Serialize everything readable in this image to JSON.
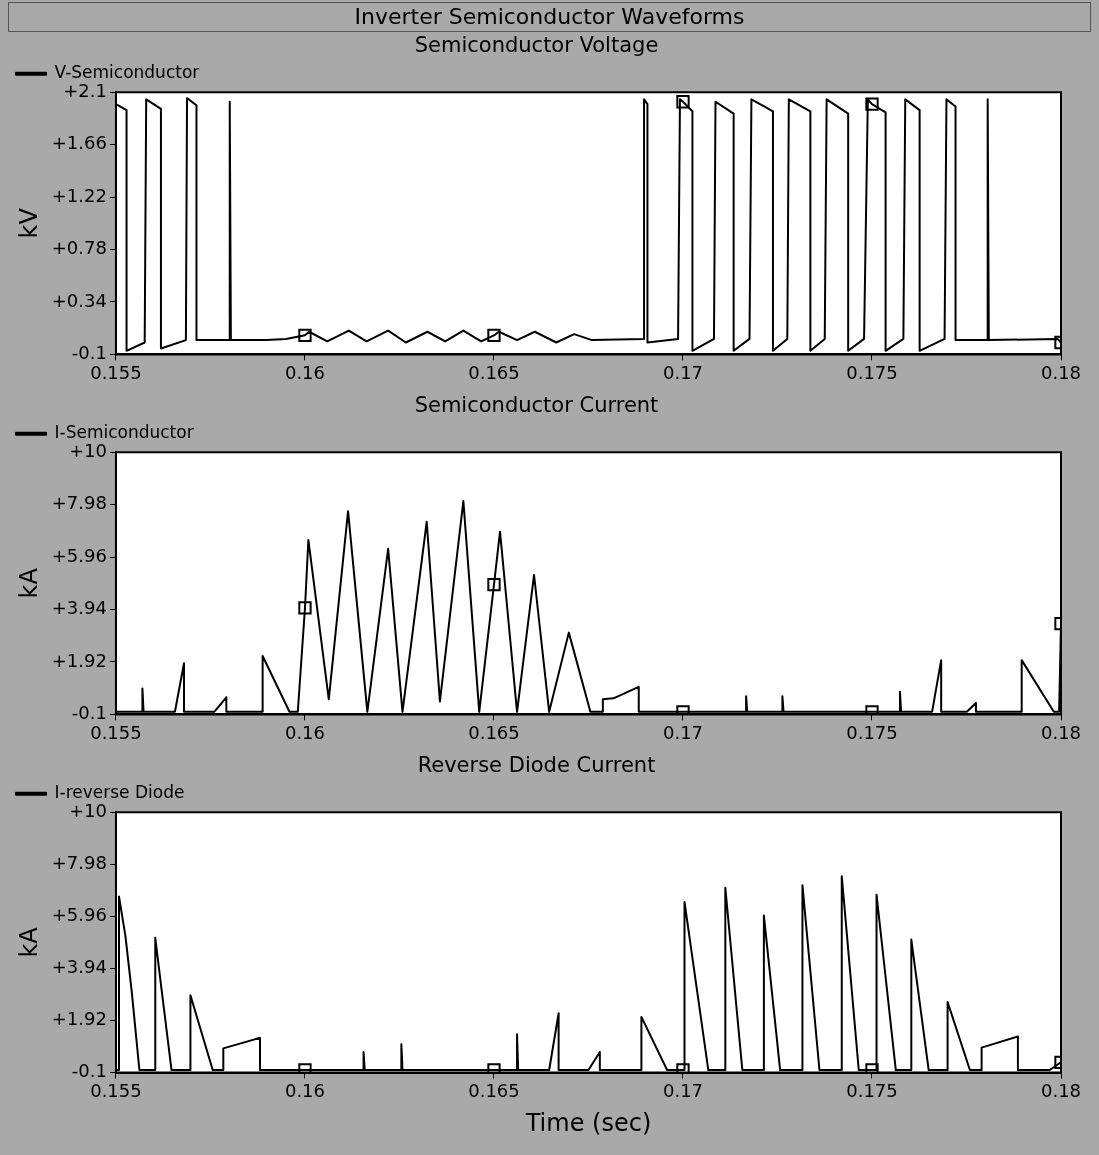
{
  "chart_data": [
    {
      "type": "line",
      "title": "Semiconductor Voltage",
      "ylabel": "kV",
      "annotations": [
        "Inverter Semiconductor Waveforms"
      ],
      "legend": "top left",
      "grid": false,
      "xlim": [
        0.155,
        0.18
      ],
      "xticks": [
        0.155,
        0.16,
        0.165,
        0.17,
        0.175,
        0.18
      ],
      "ylim": [
        -0.1,
        2.1
      ],
      "yticks": [
        {
          "value": -0.1,
          "label": "-0.1"
        },
        {
          "value": 0.34,
          "label": "+0.34"
        },
        {
          "value": 0.78,
          "label": "+0.78"
        },
        {
          "value": 1.22,
          "label": "+1.22"
        },
        {
          "value": 1.66,
          "label": "+1.66"
        },
        {
          "value": 2.1,
          "label": "+2.1"
        }
      ],
      "series": [
        {
          "name": "V-Semiconductor",
          "color": "#000000",
          "x": [
            0.155,
            0.15528,
            0.15528,
            0.15576,
            0.1558,
            0.15619,
            0.15619,
            0.15685,
            0.15688,
            0.15713,
            0.15713,
            0.15801,
            0.15801,
            0.15804,
            0.15898,
            0.1595,
            0.16,
            0.16011,
            0.16059,
            0.16116,
            0.16163,
            0.1622,
            0.16267,
            0.16324,
            0.16371,
            0.16419,
            0.16466,
            0.165,
            0.16513,
            0.16561,
            0.16608,
            0.16665,
            0.16712,
            0.16759,
            0.16897,
            0.16897,
            0.16906,
            0.16906,
            0.16987,
            0.16992,
            0.17,
            0.17025,
            0.17025,
            0.17082,
            0.17086,
            0.17134,
            0.17134,
            0.17176,
            0.17181,
            0.17238,
            0.17238,
            0.17276,
            0.1728,
            0.17337,
            0.17337,
            0.17375,
            0.1738,
            0.17437,
            0.17437,
            0.17479,
            0.17489,
            0.175,
            0.17536,
            0.17536,
            0.17583,
            0.17588,
            0.17626,
            0.17626,
            0.17692,
            0.17697,
            0.17721,
            0.17721,
            0.17806,
            0.17806,
            0.17809,
            0.17991,
            0.18
          ],
          "values": [
            2.0,
            1.95,
            -0.07,
            0.0,
            2.04,
            1.96,
            -0.05,
            0.02,
            2.05,
            1.99,
            0.02,
            0.02,
            2.02,
            0.02,
            0.02,
            0.03,
            0.06,
            0.09,
            0.01,
            0.1,
            0.01,
            0.1,
            0.0,
            0.09,
            0.01,
            0.1,
            0.01,
            0.06,
            0.09,
            0.02,
            0.09,
            0.0,
            0.07,
            0.02,
            0.03,
            2.04,
            2.0,
            0.0,
            0.03,
            2.04,
            2.02,
            1.94,
            -0.07,
            0.03,
            2.02,
            1.92,
            -0.07,
            0.03,
            2.04,
            1.94,
            -0.07,
            0.03,
            2.04,
            1.94,
            -0.07,
            0.03,
            2.04,
            1.92,
            -0.07,
            0.03,
            2.04,
            2.0,
            1.93,
            -0.07,
            0.03,
            2.04,
            1.95,
            -0.07,
            0.03,
            2.04,
            1.98,
            0.02,
            0.02,
            2.04,
            0.02,
            0.03,
            0.0
          ],
          "marker": "none"
        },
        {
          "type": "scatter",
          "color": "#000000",
          "marker": "square",
          "x": [
            0.16,
            0.165,
            0.17,
            0.175,
            0.18
          ],
          "values": [
            0.06,
            0.06,
            2.02,
            2.0,
            0.0
          ]
        }
      ]
    },
    {
      "type": "line",
      "title": "Semiconductor Current",
      "ylabel": "kA",
      "legend": "top left",
      "grid": false,
      "xlim": [
        0.155,
        0.18
      ],
      "xticks": [
        0.155,
        0.16,
        0.165,
        0.17,
        0.175,
        0.18
      ],
      "ylim": [
        -0.1,
        10
      ],
      "yticks": [
        {
          "value": -0.1,
          "label": "-0.1"
        },
        {
          "value": 1.92,
          "label": "+1.92"
        },
        {
          "value": 3.94,
          "label": "+3.94"
        },
        {
          "value": 5.96,
          "label": "+5.96"
        },
        {
          "value": 7.98,
          "label": "+7.98"
        },
        {
          "value": 10,
          "label": "+10"
        }
      ],
      "series": [
        {
          "name": "I-Semiconductor",
          "color": "#000000",
          "x": [
            0.155,
            0.1557,
            0.1557,
            0.15573,
            0.15656,
            0.1568,
            0.1568,
            0.1576,
            0.15792,
            0.15792,
            0.15888,
            0.15888,
            0.15959,
            0.15981,
            0.16,
            0.16009,
            0.16063,
            0.16114,
            0.16165,
            0.1622,
            0.16258,
            0.16322,
            0.16357,
            0.16419,
            0.16461,
            0.165,
            0.16516,
            0.16561,
            0.16606,
            0.16646,
            0.16698,
            0.16755,
            0.16788,
            0.16788,
            0.16816,
            0.16883,
            0.16883,
            0.17,
            0.17167,
            0.17167,
            0.1717,
            0.17263,
            0.17263,
            0.17266,
            0.175,
            0.17574,
            0.17574,
            0.17577,
            0.17659,
            0.17683,
            0.17683,
            0.17751,
            0.17775,
            0.17775,
            0.17896,
            0.17896,
            0.17981,
            0.17995,
            0.18
          ],
          "values": [
            0,
            0,
            0.9,
            0,
            0,
            1.87,
            0,
            0,
            0.56,
            0,
            0,
            2.15,
            0,
            0,
            4.0,
            6.62,
            0.48,
            7.73,
            0,
            6.28,
            0,
            7.32,
            0.4,
            8.12,
            0,
            4.9,
            6.94,
            0,
            5.27,
            0,
            3.05,
            0,
            0,
            0.48,
            0.52,
            0.96,
            0,
            0,
            0,
            0.6,
            0,
            0,
            0.6,
            0,
            0,
            0,
            0.77,
            0,
            0,
            1.99,
            0,
            0,
            0.34,
            0,
            0,
            1.99,
            0,
            0,
            3.4
          ],
          "marker": "none"
        },
        {
          "type": "scatter",
          "color": "#000000",
          "marker": "square",
          "x": [
            0.16,
            0.165,
            0.17,
            0.175,
            0.18
          ],
          "values": [
            4.0,
            4.9,
            0,
            0,
            3.4
          ]
        }
      ]
    },
    {
      "type": "line",
      "title": "Reverse Diode Current",
      "ylabel": "kA",
      "xlabel": "Time (sec)",
      "legend": "top left",
      "grid": false,
      "xlim": [
        0.155,
        0.18
      ],
      "xticks": [
        0.155,
        0.16,
        0.165,
        0.17,
        0.175,
        0.18
      ],
      "ylim": [
        -0.1,
        10
      ],
      "yticks": [
        {
          "value": -0.1,
          "label": "-0.1"
        },
        {
          "value": 1.92,
          "label": "+1.92"
        },
        {
          "value": 3.94,
          "label": "+3.94"
        },
        {
          "value": 5.96,
          "label": "+5.96"
        },
        {
          "value": 7.98,
          "label": "+7.98"
        },
        {
          "value": 10,
          "label": "+10"
        }
      ],
      "series": [
        {
          "name": "I-reverse Diode",
          "color": "#000000",
          "x": [
            0.155,
            0.15508,
            0.15508,
            0.15525,
            0.15542,
            0.15562,
            0.15604,
            0.15604,
            0.1562,
            0.15647,
            0.15697,
            0.15697,
            0.15756,
            0.15784,
            0.15784,
            0.15881,
            0.15881,
            0.16,
            0.16155,
            0.16155,
            0.16158,
            0.16255,
            0.16255,
            0.16258,
            0.165,
            0.16561,
            0.16561,
            0.16564,
            0.16646,
            0.16671,
            0.16671,
            0.1675,
            0.1678,
            0.1678,
            0.1689,
            0.1689,
            0.16958,
            0.17,
            0.17004,
            0.17004,
            0.17067,
            0.17112,
            0.17112,
            0.17157,
            0.17214,
            0.17214,
            0.17257,
            0.17316,
            0.17316,
            0.17361,
            0.1742,
            0.1742,
            0.17465,
            0.175,
            0.17512,
            0.17512,
            0.17563,
            0.17604,
            0.17604,
            0.1765,
            0.177,
            0.177,
            0.17759,
            0.1779,
            0.1779,
            0.17886,
            0.17886,
            0.1797,
            0.18
          ],
          "values": [
            0,
            0,
            6.73,
            5.2,
            3.0,
            0,
            0,
            5.13,
            3.2,
            0,
            0,
            2.9,
            0,
            0,
            0.84,
            1.25,
            0,
            0,
            0,
            0.7,
            0,
            0,
            1.0,
            0,
            0,
            0,
            1.39,
            0,
            0,
            2.2,
            0,
            0,
            0.7,
            0,
            0,
            2.06,
            0,
            0,
            0,
            6.52,
            0,
            0,
            7.07,
            0,
            0,
            5.99,
            0,
            0,
            7.17,
            0,
            0,
            7.52,
            0,
            0,
            0,
            6.8,
            0,
            0,
            5.06,
            0,
            0,
            2.64,
            0,
            0,
            0.87,
            1.3,
            0,
            0,
            0.3
          ],
          "marker": "none"
        },
        {
          "type": "scatter",
          "color": "#000000",
          "marker": "square",
          "x": [
            0.16,
            0.165,
            0.17,
            0.175,
            0.18
          ],
          "values": [
            0,
            0,
            0,
            0,
            0.3
          ]
        }
      ]
    }
  ]
}
